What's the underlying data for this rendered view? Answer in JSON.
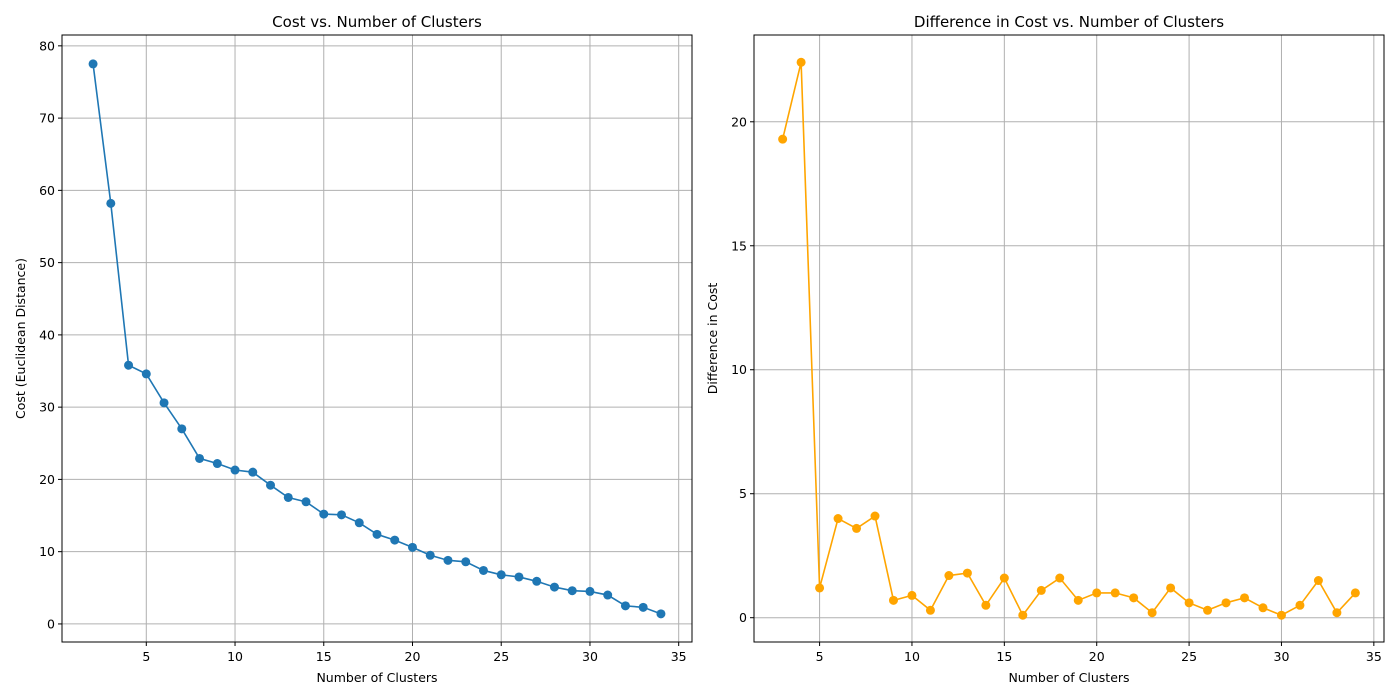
{
  "chart_data": [
    {
      "type": "line",
      "title": "Cost vs. Number of Clusters",
      "xlabel": "Number of Clusters",
      "ylabel": "Cost (Euclidean Distance)",
      "xlim": [
        0.25,
        35.75
      ],
      "ylim": [
        -2.5,
        81.5
      ],
      "xticks": [
        5,
        10,
        15,
        20,
        25,
        30,
        35
      ],
      "yticks": [
        0,
        10,
        20,
        30,
        40,
        50,
        60,
        70,
        80
      ],
      "grid": true,
      "series": [
        {
          "color": "#1f77b4",
          "marker": "circle",
          "x": [
            2,
            3,
            4,
            5,
            6,
            7,
            8,
            9,
            10,
            11,
            12,
            13,
            14,
            15,
            16,
            17,
            18,
            19,
            20,
            21,
            22,
            23,
            24,
            25,
            26,
            27,
            28,
            29,
            30,
            31,
            32,
            33,
            34
          ],
          "y": [
            77.5,
            58.2,
            35.8,
            34.6,
            30.6,
            27.0,
            22.9,
            22.2,
            21.3,
            21.0,
            19.2,
            17.5,
            16.9,
            15.2,
            15.1,
            14.0,
            12.4,
            11.6,
            10.6,
            9.5,
            8.8,
            8.6,
            7.4,
            6.8,
            6.5,
            5.9,
            5.1,
            4.6,
            4.5,
            4.0,
            2.5,
            2.3,
            1.4
          ]
        }
      ]
    },
    {
      "type": "line",
      "title": "Difference in Cost vs. Number of Clusters",
      "xlabel": "Number of Clusters",
      "ylabel": "Difference in Cost",
      "xlim": [
        1.45,
        35.55
      ],
      "ylim": [
        -0.98,
        23.5
      ],
      "xticks": [
        5,
        10,
        15,
        20,
        25,
        30,
        35
      ],
      "yticks": [
        0,
        5,
        10,
        15,
        20
      ],
      "grid": true,
      "series": [
        {
          "color": "#ffa500",
          "marker": "circle",
          "x": [
            3,
            4,
            5,
            6,
            7,
            8,
            9,
            10,
            11,
            12,
            13,
            14,
            15,
            16,
            17,
            18,
            19,
            20,
            21,
            22,
            23,
            24,
            25,
            26,
            27,
            28,
            29,
            30,
            31,
            32,
            33,
            34
          ],
          "y": [
            19.3,
            22.4,
            1.2,
            4.0,
            3.6,
            4.1,
            0.7,
            0.9,
            0.3,
            1.7,
            1.8,
            0.5,
            1.6,
            0.1,
            1.1,
            1.6,
            0.7,
            1.0,
            1.0,
            0.8,
            0.2,
            1.2,
            0.6,
            0.3,
            0.6,
            0.8,
            0.4,
            0.1,
            0.5,
            1.5,
            0.2,
            1.0
          ]
        }
      ]
    }
  ]
}
